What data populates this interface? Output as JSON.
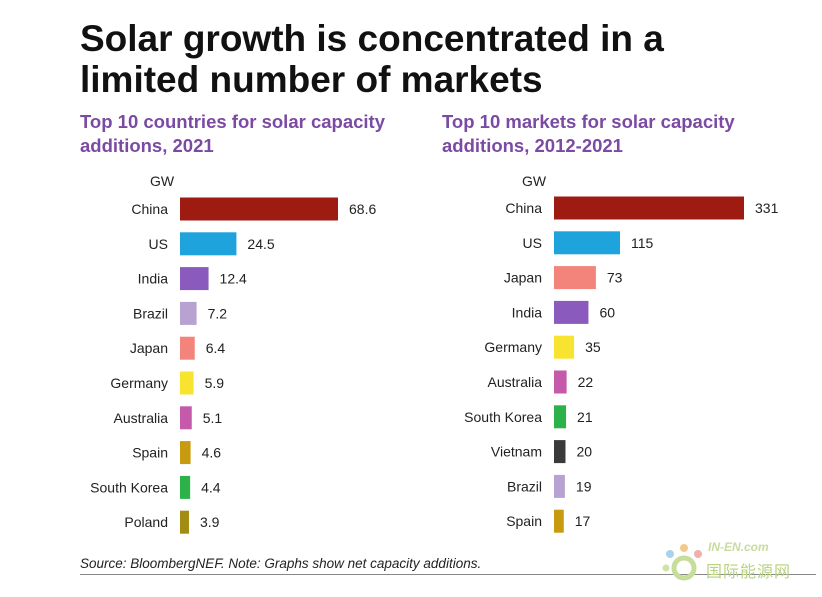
{
  "title": "Solar growth is concentrated in a limited number of markets",
  "source": "Source: BloombergNEF. Note: Graphs show net capacity additions.",
  "watermark": {
    "top": "IN-EN.com",
    "bottom": "国际能源网"
  },
  "chart_data": [
    {
      "type": "bar",
      "orientation": "horizontal",
      "title": "Top 10 countries for solar capacity additions, 2021",
      "unit": "GW",
      "categories": [
        "China",
        "US",
        "India",
        "Brazil",
        "Japan",
        "Germany",
        "Australia",
        "Spain",
        "South Korea",
        "Poland"
      ],
      "values": [
        68.6,
        24.5,
        12.4,
        7.2,
        6.4,
        5.9,
        5.1,
        4.6,
        4.4,
        3.9
      ],
      "labels": [
        "68.6",
        "24.5",
        "12.4",
        "7.2",
        "6.4",
        "5.9",
        "5.1",
        "4.6",
        "4.4",
        "3.9"
      ],
      "colors": [
        "#9e1b12",
        "#1ea3dd",
        "#8a5bbd",
        "#b7a2d2",
        "#f3847b",
        "#f7e330",
        "#c55aaa",
        "#c89a0f",
        "#2db24a",
        "#a38c14"
      ],
      "xlim": [
        0,
        68.6
      ],
      "grid": false
    },
    {
      "type": "bar",
      "orientation": "horizontal",
      "title": "Top 10 markets for solar capacity additions, 2012-2021",
      "unit": "GW",
      "categories": [
        "China",
        "US",
        "Japan",
        "India",
        "Germany",
        "Australia",
        "South Korea",
        "Vietnam",
        "Brazil",
        "Spain"
      ],
      "values": [
        331,
        115,
        73,
        60,
        35,
        22,
        21,
        20,
        19,
        17
      ],
      "labels": [
        "331",
        "115",
        "73",
        "60",
        "35",
        "22",
        "21",
        "20",
        "19",
        "17"
      ],
      "colors": [
        "#9e1b12",
        "#1ea3dd",
        "#f3847b",
        "#8a5bbd",
        "#f7e330",
        "#c55aaa",
        "#2db24a",
        "#3a3a3a",
        "#b7a2d2",
        "#c89a0f"
      ],
      "xlim": [
        0,
        331
      ],
      "grid": false
    }
  ]
}
